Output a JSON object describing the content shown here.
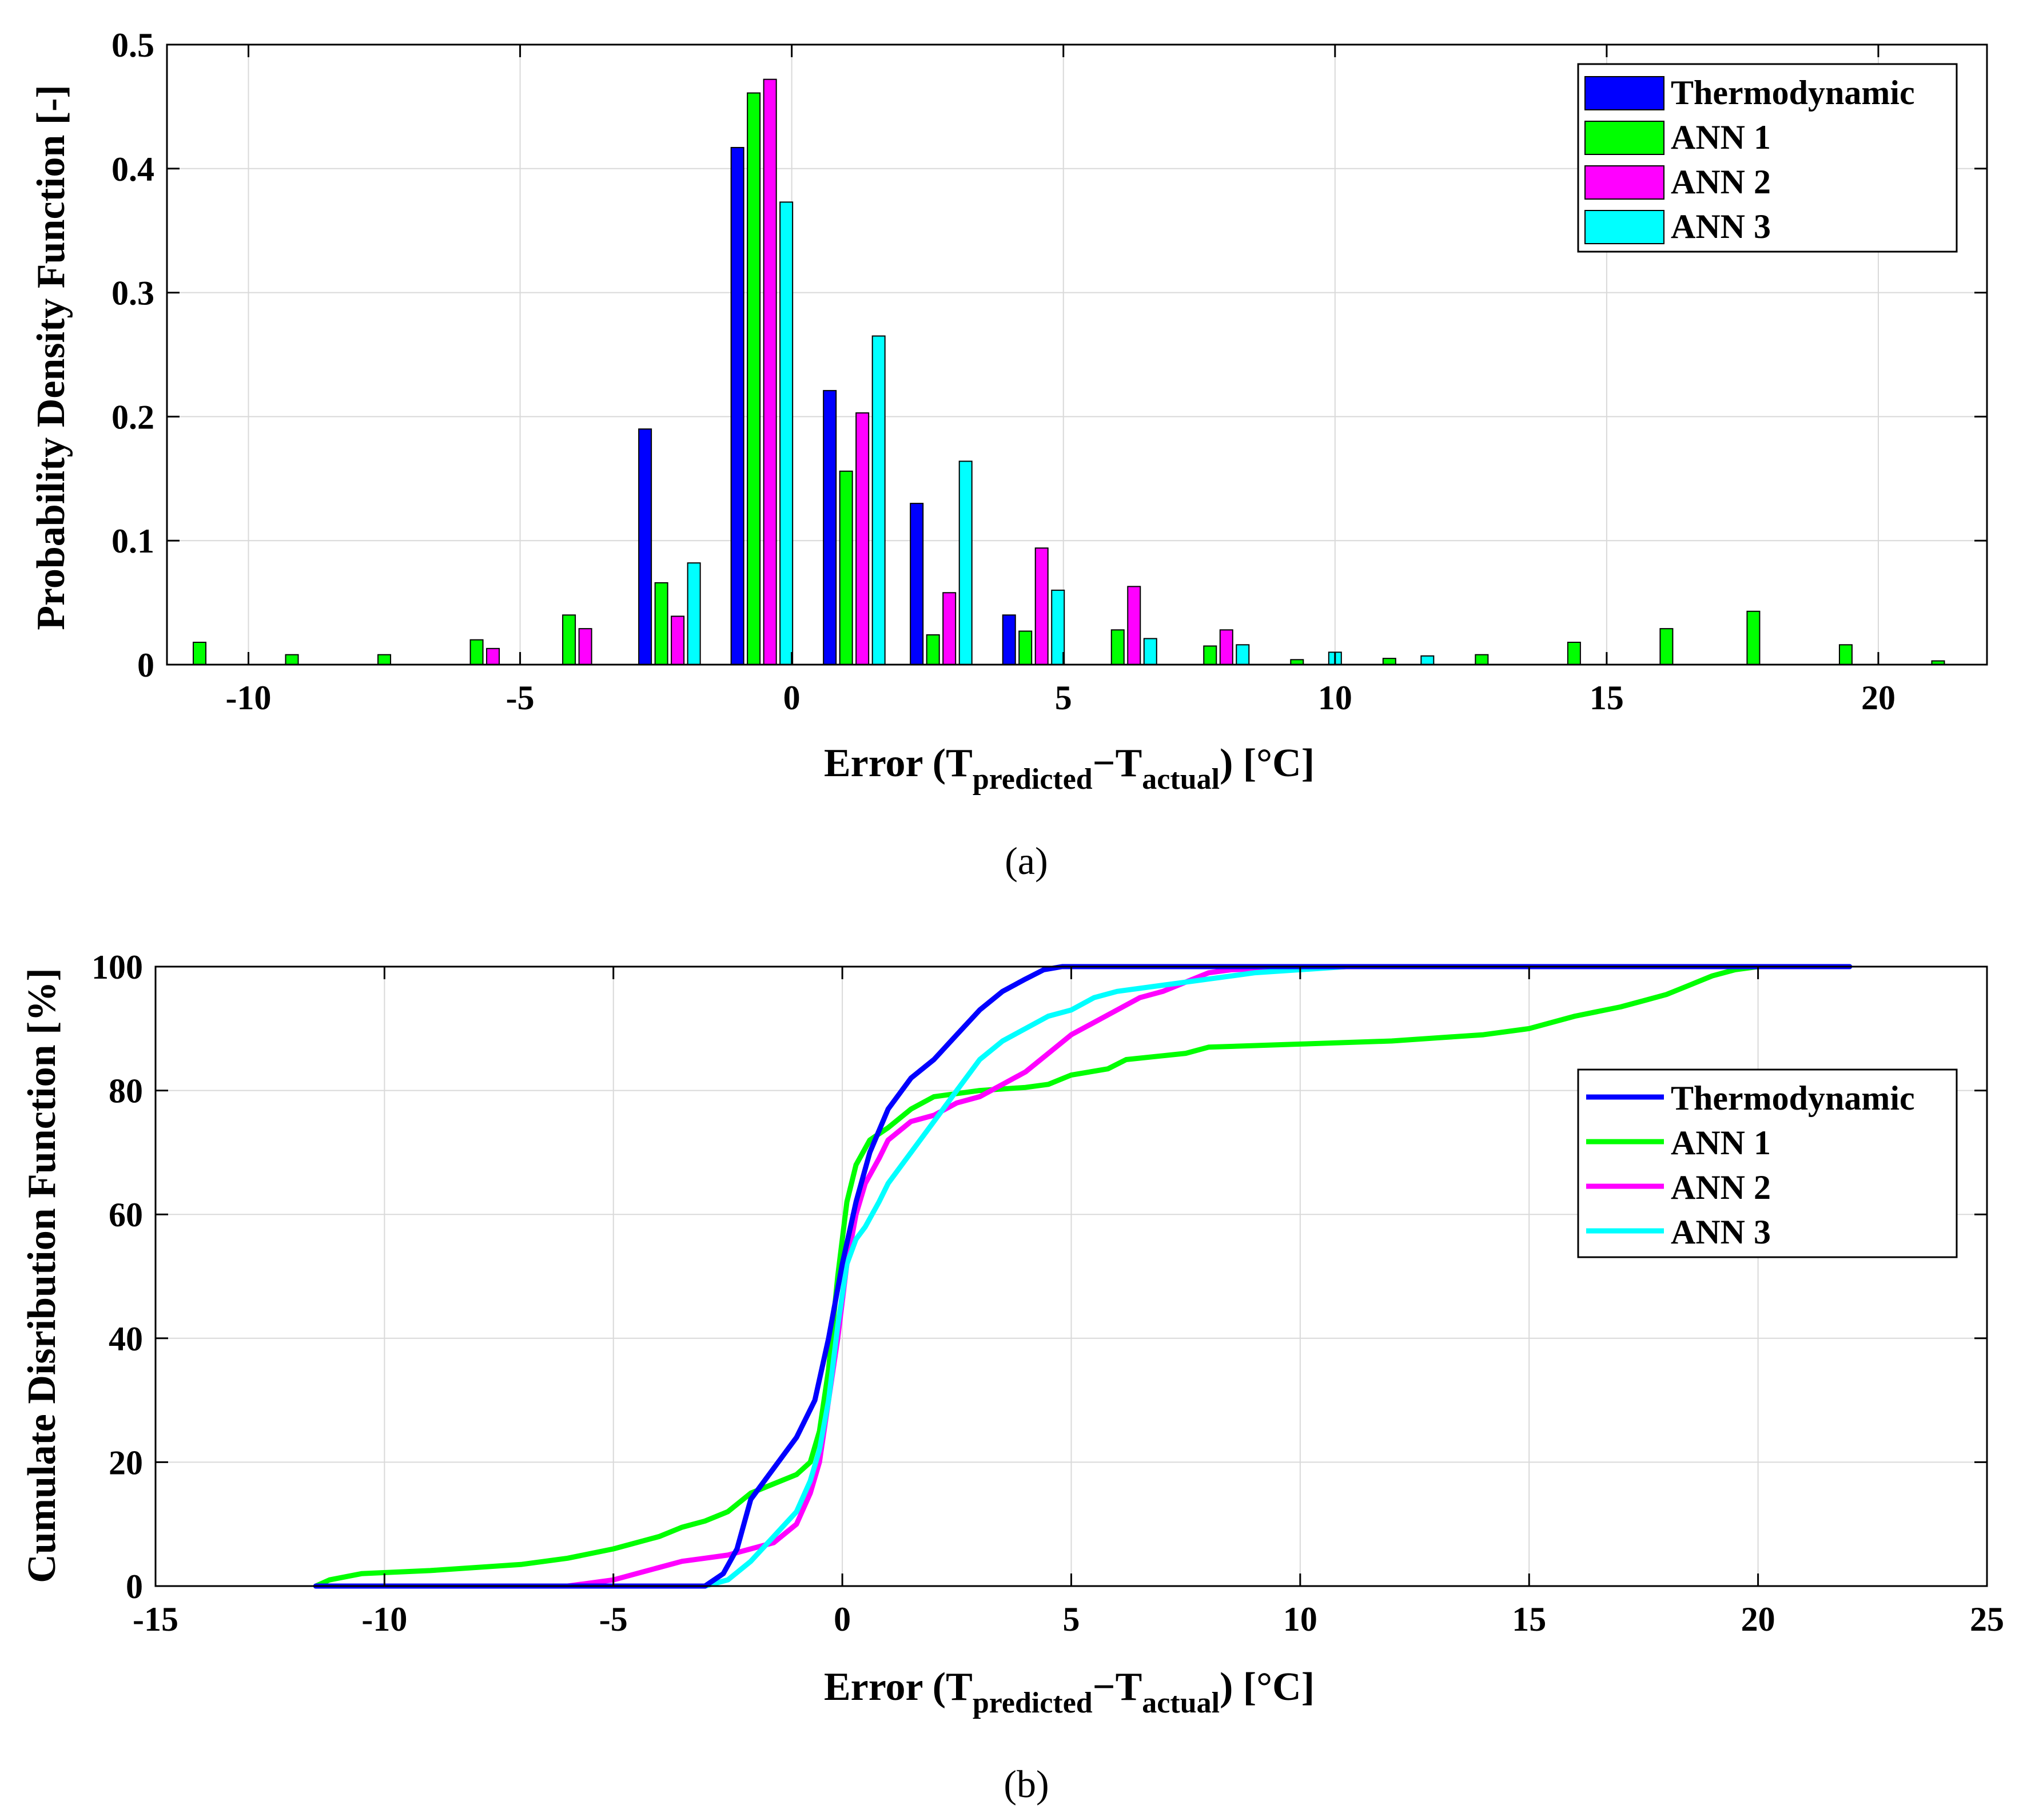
{
  "chart_data": [
    {
      "type": "bar",
      "caption": "(a)",
      "xlabel": {
        "main": "Error (T",
        "sub1": "predicted",
        "mid": "−T",
        "sub2": "actual",
        "end": ") [°C]"
      },
      "ylabel": "Probability Density Function [-]",
      "xlim": [
        -11.5,
        22
      ],
      "ylim": [
        0,
        0.5
      ],
      "xticks": [
        -10,
        -5,
        0,
        5,
        10,
        15,
        20
      ],
      "yticks": [
        0,
        0.1,
        0.2,
        0.3,
        0.4,
        0.5
      ],
      "ytick_labels": [
        "0",
        "0.1",
        "0.2",
        "0.3",
        "0.4",
        "0.5"
      ],
      "grid": true,
      "legend_position": "top-right",
      "series": [
        {
          "name": "Thermodynamic",
          "color": "#0000ff",
          "points": [
            [
              -2.7,
              0.19
            ],
            [
              -1.0,
              0.417
            ],
            [
              0.7,
              0.221
            ],
            [
              2.3,
              0.13
            ],
            [
              4.0,
              0.04
            ]
          ]
        },
        {
          "name": "ANN 1",
          "color": "#00ff00",
          "points": [
            [
              -10.9,
              0.018
            ],
            [
              -9.2,
              0.008
            ],
            [
              -7.5,
              0.008
            ],
            [
              -5.8,
              0.02
            ],
            [
              -4.1,
              0.04
            ],
            [
              -2.4,
              0.066
            ],
            [
              -0.7,
              0.461
            ],
            [
              1.0,
              0.156
            ],
            [
              2.6,
              0.024
            ],
            [
              4.3,
              0.027
            ],
            [
              6.0,
              0.028
            ],
            [
              7.7,
              0.015
            ],
            [
              9.3,
              0.004
            ],
            [
              11.0,
              0.005
            ],
            [
              12.7,
              0.008
            ],
            [
              14.4,
              0.018
            ],
            [
              16.1,
              0.029
            ],
            [
              17.7,
              0.043
            ],
            [
              19.4,
              0.016
            ],
            [
              21.1,
              0.003
            ]
          ]
        },
        {
          "name": "ANN 2",
          "color": "#ff00ff",
          "points": [
            [
              -5.5,
              0.013
            ],
            [
              -3.8,
              0.029
            ],
            [
              -2.1,
              0.039
            ],
            [
              -0.4,
              0.472
            ],
            [
              1.3,
              0.203
            ],
            [
              2.9,
              0.058
            ],
            [
              4.6,
              0.094
            ],
            [
              6.3,
              0.063
            ],
            [
              8.0,
              0.028
            ]
          ]
        },
        {
          "name": "ANN 3",
          "color": "#00ffff",
          "points": [
            [
              -1.8,
              0.082
            ],
            [
              -0.1,
              0.373
            ],
            [
              1.6,
              0.265
            ],
            [
              3.2,
              0.164
            ],
            [
              4.9,
              0.06
            ],
            [
              6.6,
              0.021
            ],
            [
              8.3,
              0.016
            ],
            [
              10.0,
              0.01
            ],
            [
              11.7,
              0.007
            ]
          ]
        }
      ]
    },
    {
      "type": "line",
      "caption": "(b)",
      "xlabel": {
        "main": "Error (T",
        "sub1": "predicted",
        "mid": "−T",
        "sub2": "actual",
        "end": ") [°C]"
      },
      "ylabel": "Cumulate Disribution Function [%]",
      "xlim": [
        -15,
        25
      ],
      "ylim": [
        0,
        100
      ],
      "xticks": [
        -15,
        -10,
        -5,
        0,
        5,
        10,
        15,
        20,
        25
      ],
      "yticks": [
        0,
        20,
        40,
        60,
        80,
        100
      ],
      "grid": true,
      "legend_position": "right",
      "series": [
        {
          "name": "Thermodynamic",
          "color": "#0000ff",
          "x": [
            -11.5,
            -3.0,
            -2.6,
            -2.3,
            -2.0,
            -1.7,
            -1.4,
            -1.0,
            -0.6,
            -0.3,
            0.0,
            0.3,
            0.6,
            1.0,
            1.5,
            2.0,
            2.5,
            3.0,
            3.5,
            4.0,
            4.4,
            4.8,
            22.0
          ],
          "y": [
            0,
            0,
            2,
            6,
            14,
            17,
            20,
            24,
            30,
            40,
            52,
            62,
            70,
            77,
            82,
            85,
            89,
            93,
            96,
            98,
            99.5,
            100,
            100
          ]
        },
        {
          "name": "ANN 1",
          "color": "#00ff00",
          "x": [
            -11.5,
            -11.2,
            -10.5,
            -9.0,
            -7.0,
            -6.0,
            -5.0,
            -4.0,
            -3.5,
            -3.0,
            -2.5,
            -2.0,
            -1.5,
            -1.0,
            -0.7,
            -0.5,
            -0.3,
            -0.1,
            0.1,
            0.3,
            0.6,
            1.0,
            1.5,
            2.0,
            3.0,
            4.0,
            4.5,
            5.0,
            5.8,
            6.2,
            7.5,
            8.0,
            10.0,
            12.0,
            13.0,
            14.0,
            15.0,
            16.0,
            17.0,
            17.5,
            18.0,
            18.5,
            19.0,
            19.5,
            20.0,
            22.0
          ],
          "y": [
            0,
            1,
            2,
            2.5,
            3.5,
            4.5,
            6,
            8,
            9.5,
            10.5,
            12,
            15,
            16.5,
            18,
            20,
            25,
            35,
            50,
            62,
            68,
            72,
            74,
            77,
            79,
            80,
            80.5,
            81,
            82.5,
            83.5,
            85,
            86,
            87,
            87.5,
            88,
            88.5,
            89,
            90,
            92,
            93.5,
            94.5,
            95.5,
            97,
            98.5,
            99.5,
            100,
            100
          ]
        },
        {
          "name": "ANN 2",
          "color": "#ff00ff",
          "x": [
            -11.5,
            -6.0,
            -5.0,
            -4.5,
            -4.0,
            -3.5,
            -3.0,
            -2.5,
            -2.0,
            -1.5,
            -1.0,
            -0.7,
            -0.5,
            -0.3,
            -0.1,
            0.1,
            0.3,
            0.5,
            0.8,
            1.0,
            1.5,
            2.0,
            2.5,
            3.0,
            3.5,
            4.0,
            4.5,
            5.0,
            5.5,
            6.0,
            6.5,
            7.0,
            7.5,
            8.0,
            8.5,
            11.0,
            22.0
          ],
          "y": [
            0,
            0,
            1,
            2,
            3,
            4,
            4.5,
            5,
            6,
            7,
            10,
            15,
            20,
            30,
            40,
            52,
            60,
            65,
            69,
            72,
            75,
            76,
            78,
            79,
            81,
            83,
            86,
            89,
            91,
            93,
            95,
            96,
            97.5,
            99,
            99.5,
            100,
            100
          ]
        },
        {
          "name": "ANN 3",
          "color": "#00ffff",
          "x": [
            -11.5,
            -3.0,
            -2.5,
            -2.0,
            -1.5,
            -1.0,
            -0.7,
            -0.5,
            -0.3,
            -0.1,
            0.1,
            0.3,
            0.5,
            0.8,
            1.0,
            1.5,
            2.0,
            2.5,
            3.0,
            3.5,
            4.0,
            4.5,
            5.0,
            5.5,
            6.0,
            7.0,
            8.0,
            9.0,
            10.0,
            11.0,
            22.0
          ],
          "y": [
            0,
            0,
            1,
            4,
            8,
            12,
            17,
            22,
            30,
            42,
            52,
            56,
            58,
            62,
            65,
            70,
            75,
            80,
            85,
            88,
            90,
            92,
            93,
            95,
            96,
            97,
            98,
            99,
            99.5,
            100,
            100
          ]
        }
      ]
    }
  ]
}
